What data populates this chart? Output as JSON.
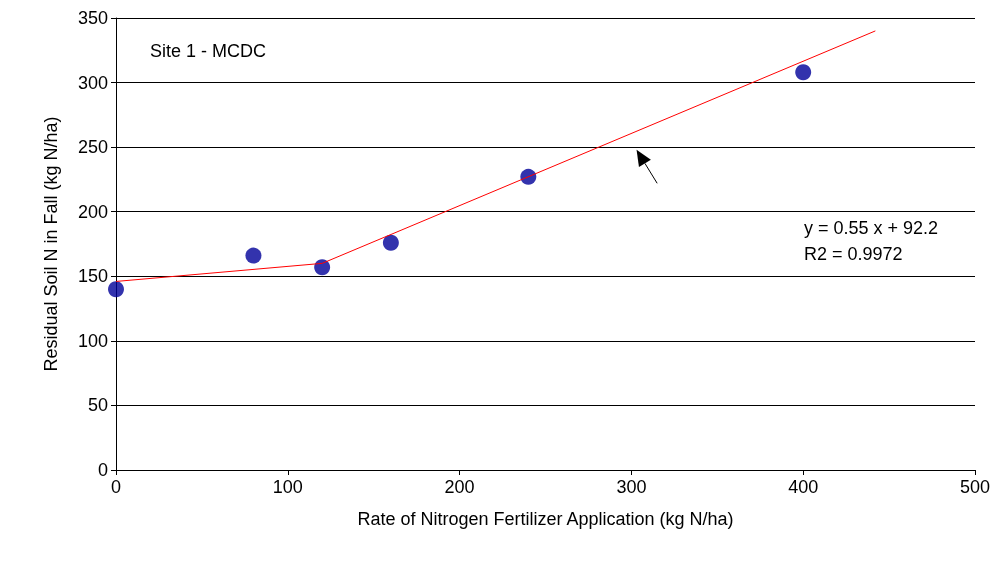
{
  "chart_data": {
    "type": "scatter",
    "xlabel": "Rate of Nitrogen Fertilizer Application (kg N/ha)",
    "ylabel": "Residual Soil N in Fall (kg N/ha)",
    "series": [
      {
        "color": "#000099",
        "marker": "circle",
        "x": [
          0,
          80,
          120,
          160,
          240,
          400
        ],
        "values": [
          140,
          166,
          157,
          176,
          227,
          308
        ]
      },
      {
        "type": "line",
        "marker": "none",
        "color": "#ff0000",
        "x": [
          0,
          120,
          442
        ],
        "values": [
          146,
          160,
          340
        ]
      }
    ],
    "xlim": [
      0,
      500
    ],
    "xticks": [
      0,
      100,
      200,
      300,
      400,
      500
    ],
    "ylim": [
      0,
      350
    ],
    "yticks": [
      0,
      50,
      100,
      150,
      200,
      250,
      300,
      350
    ],
    "grid": "y",
    "line_style": "solid",
    "annotations": [
      "Site 1 - MCDC",
      "y = 0.55 x + 92.2\nR2 = 0.9972"
    ]
  }
}
